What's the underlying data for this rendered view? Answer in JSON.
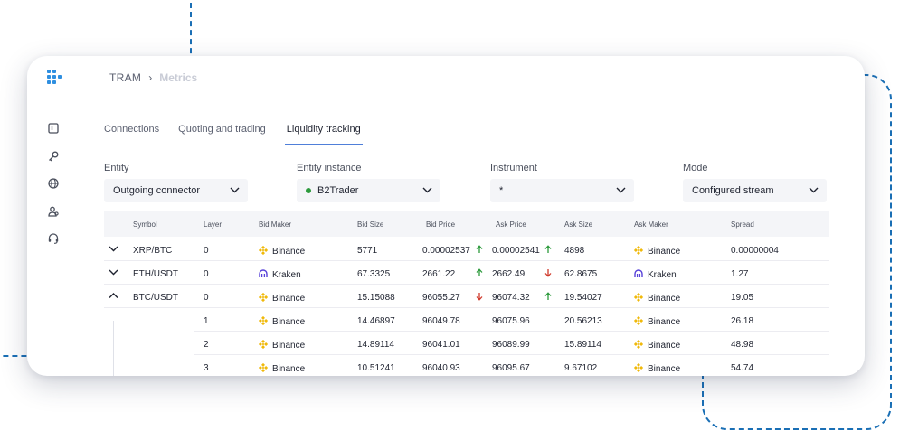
{
  "breadcrumb": {
    "root": "TRAM",
    "separator": "›",
    "current": "Metrics"
  },
  "tabs": [
    {
      "label": "Connections",
      "active": false
    },
    {
      "label": "Quoting and trading",
      "active": false
    },
    {
      "label": "Liquidity tracking",
      "active": true
    }
  ],
  "filters": {
    "entity": {
      "label": "Entity",
      "value": "Outgoing connector"
    },
    "entity_instance": {
      "label": "Entity instance",
      "value": "B2Trader",
      "status_color": "#2c9a3c"
    },
    "instrument": {
      "label": "Instrument",
      "value": "*"
    },
    "mode": {
      "label": "Mode",
      "value": "Configured stream"
    }
  },
  "table": {
    "headers": [
      "Symbol",
      "Layer",
      "Bid Maker",
      "Bid Size",
      "Bid Price",
      "Ask Price",
      "Ask Size",
      "Ask Maker",
      "Spread"
    ],
    "rows": [
      {
        "expander": "chevron-down",
        "symbol": "XRP/BTC",
        "layer": "0",
        "bid_maker": "Binance",
        "bid_size": "5771",
        "bid_price": "0.00002537",
        "bid_dir": "up",
        "ask_price": "0.00002541",
        "ask_dir": "up",
        "ask_size": "4898",
        "ask_maker": "Binance",
        "spread": "0.00000004"
      },
      {
        "expander": "chevron-down",
        "symbol": "ETH/USDT",
        "layer": "0",
        "bid_maker": "Kraken",
        "bid_size": "67.3325",
        "bid_price": "2661.22",
        "bid_dir": "up",
        "ask_price": "2662.49",
        "ask_dir": "down",
        "ask_size": "62.8675",
        "ask_maker": "Kraken",
        "spread": "1.27"
      },
      {
        "expander": "chevron-up",
        "symbol": "BTC/USDT",
        "layer": "0",
        "bid_maker": "Binance",
        "bid_size": "15.15088",
        "bid_price": "96055.27",
        "bid_dir": "down",
        "ask_price": "96074.32",
        "ask_dir": "up",
        "ask_size": "19.54027",
        "ask_maker": "Binance",
        "spread": "19.05"
      }
    ],
    "sub_rows": [
      {
        "layer": "1",
        "bid_maker": "Binance",
        "bid_size": "14.46897",
        "bid_price": "96049.78",
        "ask_price": "96075.96",
        "ask_size": "20.56213",
        "ask_maker": "Binance",
        "spread": "26.18"
      },
      {
        "layer": "2",
        "bid_maker": "Binance",
        "bid_size": "14.89114",
        "bid_price": "96041.01",
        "ask_price": "96089.99",
        "ask_size": "15.89114",
        "ask_maker": "Binance",
        "spread": "48.98"
      },
      {
        "layer": "3",
        "bid_maker": "Binance",
        "bid_size": "10.51241",
        "bid_price": "96040.93",
        "ask_price": "96095.67",
        "ask_size": "9.67102",
        "ask_maker": "Binance",
        "spread": "54.74"
      }
    ]
  },
  "colors": {
    "up": "#2c9a3c",
    "down": "#d0392b",
    "binance": "#f0b90b",
    "kraken": "#5741d9",
    "accent": "#4f7fd9"
  },
  "sidebar": {
    "icons": [
      "dashboard-icon",
      "key-icon",
      "globe-icon",
      "users-icon",
      "headset-icon"
    ]
  }
}
